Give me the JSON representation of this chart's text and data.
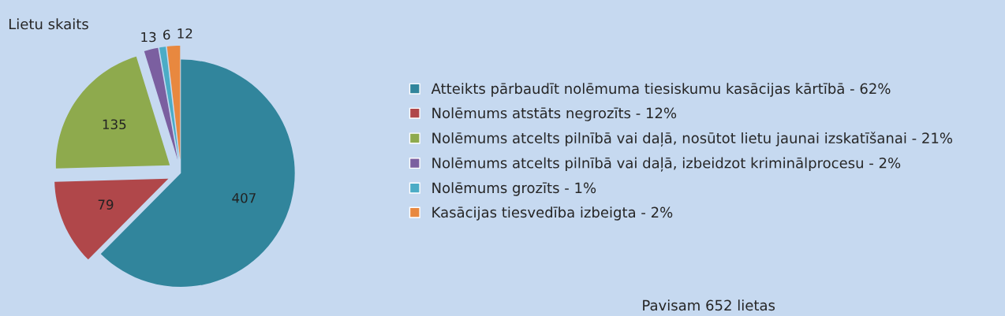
{
  "chart_data": {
    "type": "pie",
    "title": "Lietu skaits",
    "categories": [
      "Atteikts pārbaudīt nolēmuma tiesiskumu kasācijas kārtībā - 62%",
      "Nolēmums atstāts negrozīts - 12%",
      "Nolēmums atcelts pilnībā vai daļā, nosūtot lietu jaunai izskatīšanai - 21%",
      "Nolēmums atcelts pilnībā vai daļā, izbeidzot kriminālprocesu - 2%",
      "Nolēmums grozīts - 1%",
      "Kasācijas tiesvedība izbeigta - 2%"
    ],
    "values": [
      407,
      79,
      135,
      13,
      6,
      12
    ],
    "colors": [
      "#31859c",
      "#b0474a",
      "#8eaa4d",
      "#7b5fa0",
      "#4bacc6",
      "#e8883f"
    ],
    "data_labels": true,
    "legend": "right",
    "annotations": [
      "Pavisam 652 lietas"
    ]
  }
}
